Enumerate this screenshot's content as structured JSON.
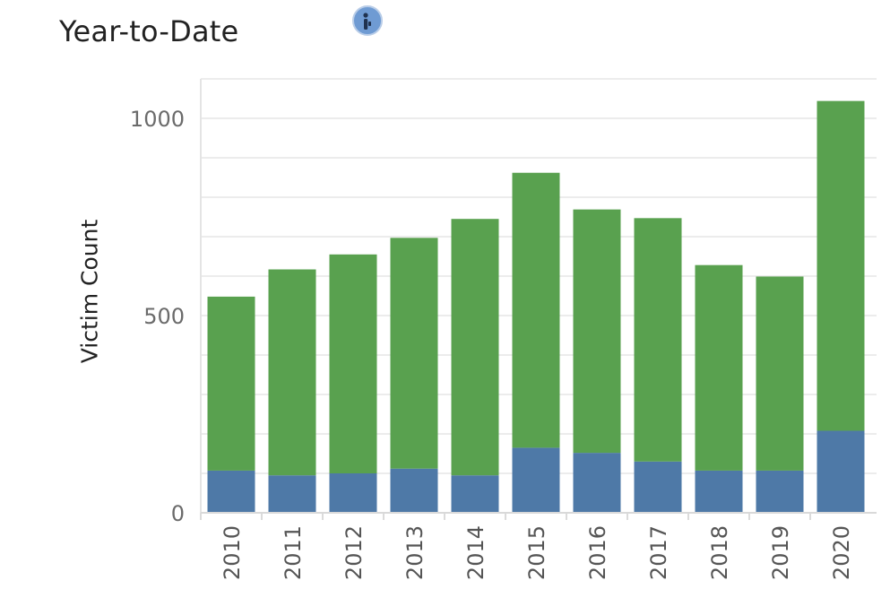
{
  "header": {
    "title": "Year-to-Date"
  },
  "icons": {
    "info": "info-icon"
  },
  "colors": {
    "top_segment": "#59a14f",
    "bottom_segment": "#4e79a7",
    "grid": "#ececec"
  },
  "chart_data": {
    "type": "bar",
    "stacked": true,
    "title": "Year-to-Date",
    "xlabel": "",
    "ylabel": "Victim Count",
    "ylim": [
      0,
      1050
    ],
    "yticks": [
      0,
      500,
      1000
    ],
    "grid": true,
    "categories": [
      "2010",
      "2011",
      "2012",
      "2013",
      "2014",
      "2015",
      "2016",
      "2017",
      "2018",
      "2019",
      "2020"
    ],
    "series": [
      {
        "values": [
          107,
          95,
          100,
          112,
          95,
          165,
          152,
          130,
          107,
          107,
          208
        ]
      },
      {
        "values": [
          441,
          522,
          555,
          585,
          650,
          697,
          617,
          617,
          521,
          492,
          836
        ]
      }
    ],
    "totals": [
      548,
      617,
      655,
      697,
      745,
      862,
      769,
      747,
      628,
      599,
      1044
    ]
  }
}
